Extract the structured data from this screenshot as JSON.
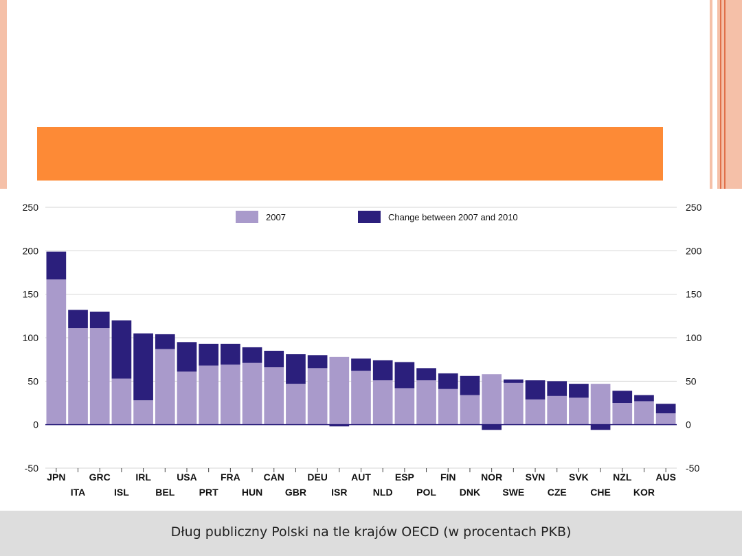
{
  "slide": {
    "caption": "Dług publiczny Polski na tle krajów OECD (w procentach PKB)"
  },
  "colors": {
    "accent": "#fd8a36",
    "border": "#f5c0a8",
    "series_2007": "#a99acb",
    "series_change": "#2b1f7c",
    "caption_band": "#dddddd"
  },
  "chart_data": {
    "type": "bar",
    "stacked": true,
    "title": "",
    "xlabel": "",
    "ylabel": "",
    "ylim": [
      -50,
      250
    ],
    "yticks": [
      250,
      200,
      150,
      100,
      50,
      0,
      -50
    ],
    "grid": true,
    "legend_position": "top-center",
    "categories": [
      "JPN",
      "ITA",
      "GRC",
      "ISL",
      "IRL",
      "BEL",
      "USA",
      "PRT",
      "FRA",
      "HUN",
      "CAN",
      "GBR",
      "DEU",
      "ISR",
      "AUT",
      "NLD",
      "ESP",
      "POL",
      "FIN",
      "DNK",
      "NOR",
      "SWE",
      "SVN",
      "CZE",
      "SVK",
      "CHE",
      "NZL",
      "KOR",
      "AUS"
    ],
    "series": [
      {
        "name": "2007",
        "values": [
          167,
          111,
          111,
          53,
          28,
          87,
          61,
          68,
          69,
          71,
          66,
          47,
          65,
          78,
          62,
          51,
          42,
          51,
          41,
          34,
          58,
          48,
          29,
          33,
          31,
          47,
          25,
          27,
          13
        ]
      },
      {
        "name": "Change between 2007 and 2010",
        "values": [
          32,
          21,
          19,
          67,
          77,
          17,
          34,
          25,
          24,
          18,
          19,
          34,
          15,
          -2,
          14,
          23,
          30,
          14,
          18,
          22,
          -6,
          4,
          22,
          17,
          16,
          -6,
          14,
          7,
          11
        ]
      }
    ]
  }
}
